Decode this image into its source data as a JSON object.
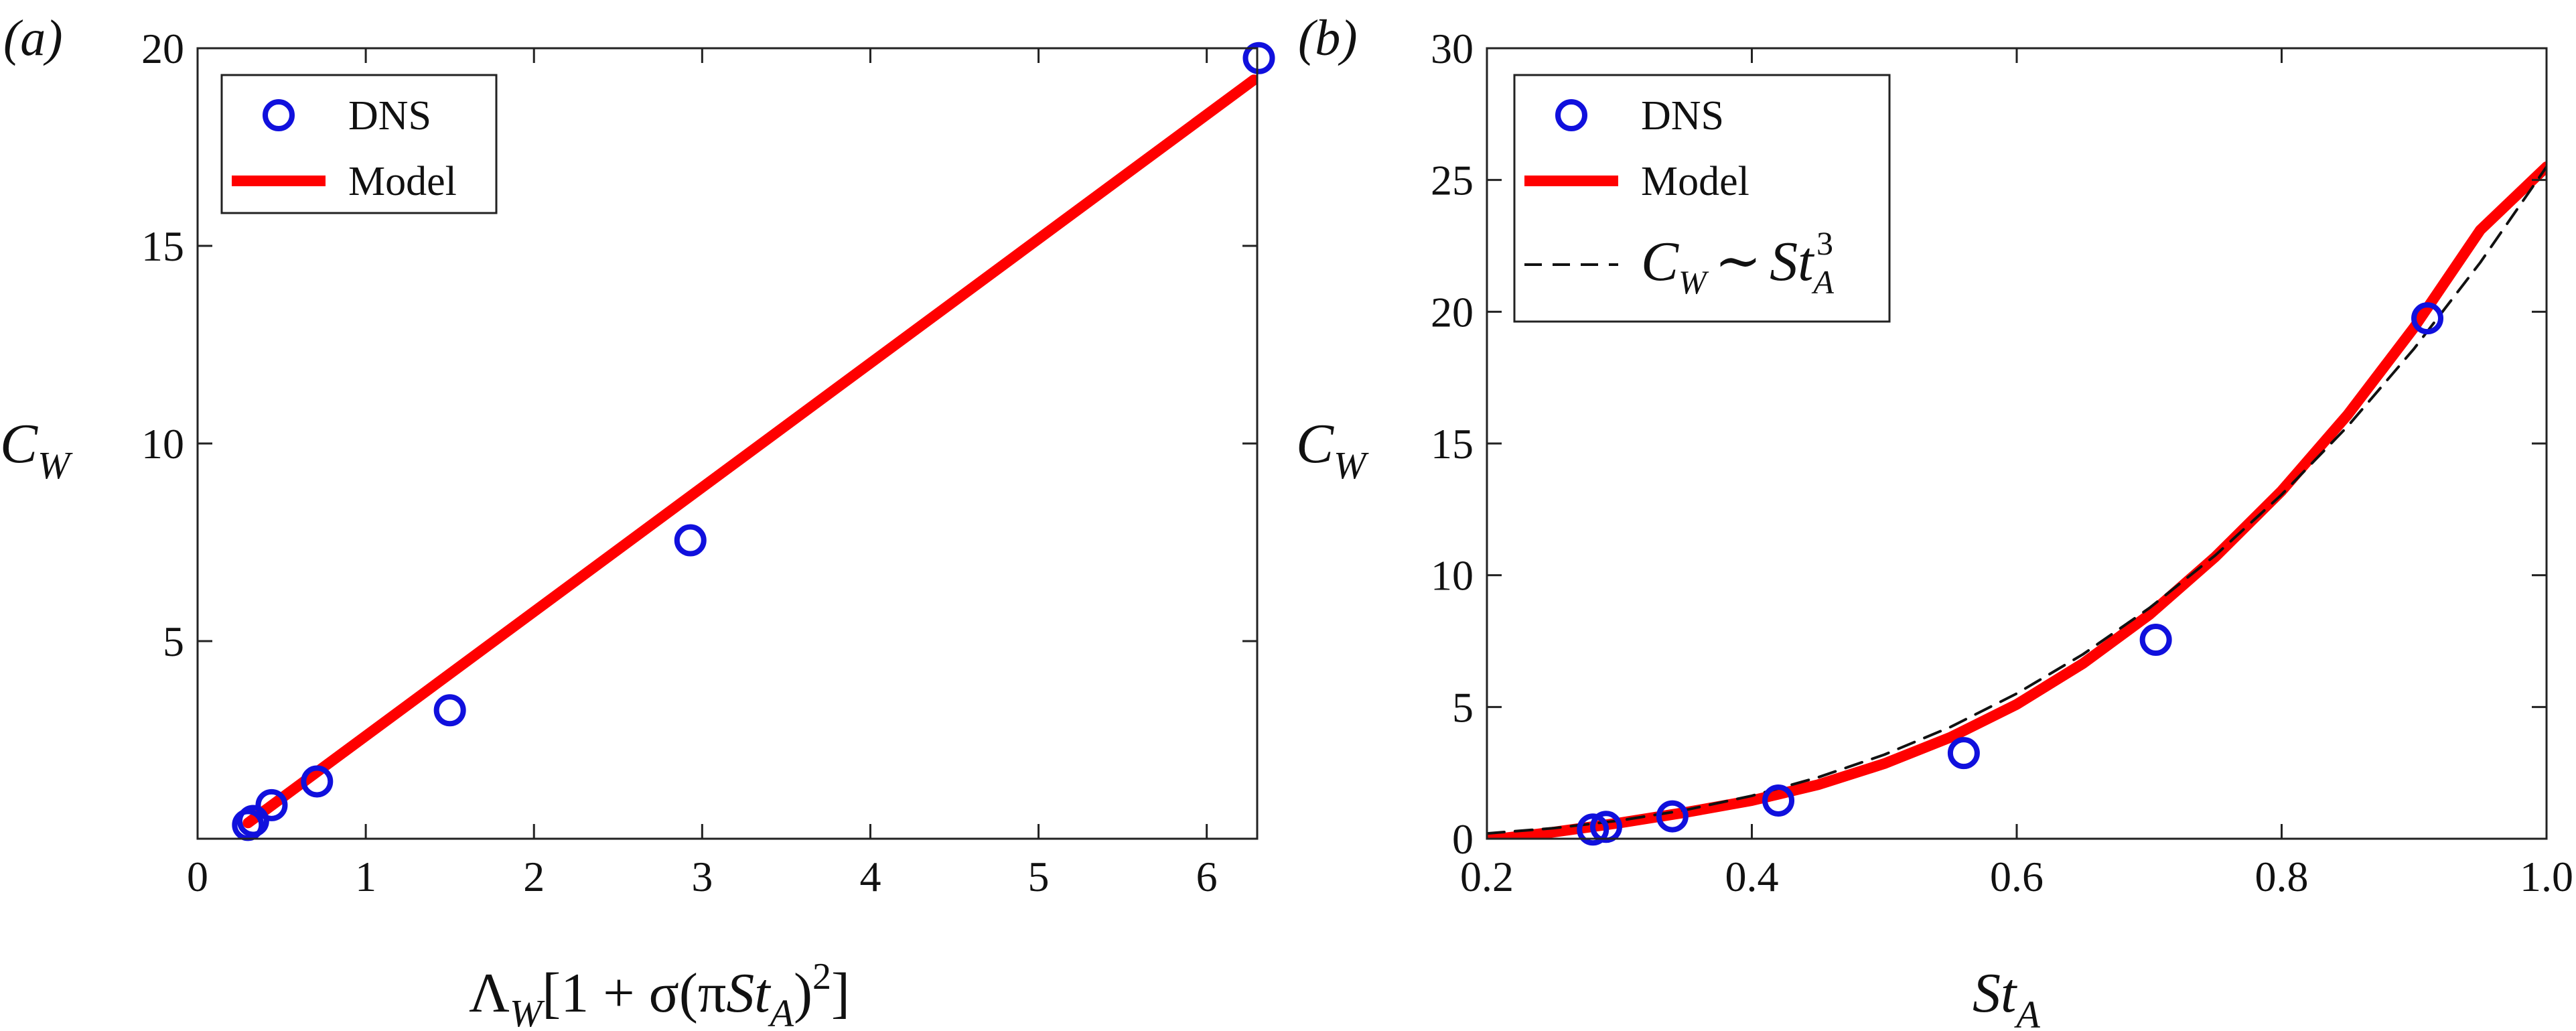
{
  "chart_data": [
    {
      "type": "scatter",
      "panel_label": "(a)",
      "ylabel": "C_W",
      "xlabel": "Λ_W[1 + σ(πSt_A)^2]",
      "xlim": [
        0,
        6.3
      ],
      "ylim": [
        0,
        20
      ],
      "xticks": [
        0,
        1,
        2,
        3,
        4,
        5,
        6
      ],
      "yticks": [
        5,
        10,
        15,
        20
      ],
      "legend": {
        "position": "top-left",
        "entries": [
          "DNS",
          "Model"
        ]
      },
      "series": [
        {
          "name": "DNS",
          "kind": "markers",
          "color": "#1010dd",
          "x": [
            0.3,
            0.33,
            0.44,
            0.71,
            1.5,
            2.93,
            6.31
          ],
          "y": [
            0.35,
            0.45,
            0.85,
            1.45,
            3.25,
            7.55,
            19.75
          ]
        },
        {
          "name": "Model",
          "kind": "line",
          "color": "#ff0000",
          "x": [
            0.3,
            6.28
          ],
          "y": [
            0.4,
            19.2
          ]
        }
      ]
    },
    {
      "type": "line",
      "panel_label": "(b)",
      "ylabel": "C_W",
      "xlabel": "St_A",
      "xlim": [
        0.2,
        1.0
      ],
      "ylim": [
        0,
        30
      ],
      "xticks": [
        "0.2",
        "0.4",
        "0.6",
        "0.8",
        "1.0"
      ],
      "yticks": [
        0,
        5,
        10,
        15,
        20,
        25,
        30
      ],
      "legend": {
        "position": "top-left",
        "entries": [
          "DNS",
          "Model",
          "C_W ~ St_A^3"
        ]
      },
      "series": [
        {
          "name": "DNS",
          "kind": "markers",
          "color": "#1010dd",
          "x": [
            0.28,
            0.29,
            0.34,
            0.42,
            0.56,
            0.705,
            0.91
          ],
          "y": [
            0.35,
            0.45,
            0.85,
            1.45,
            3.25,
            7.55,
            19.75
          ]
        },
        {
          "name": "Model",
          "kind": "line",
          "color": "#ff0000",
          "x": [
            0.2,
            0.25,
            0.3,
            0.35,
            0.4,
            0.45,
            0.5,
            0.55,
            0.6,
            0.65,
            0.7,
            0.75,
            0.8,
            0.85,
            0.9,
            0.95,
            1.0
          ],
          "y": [
            -0.05,
            0.25,
            0.6,
            1.0,
            1.45,
            2.05,
            2.85,
            3.85,
            5.1,
            6.65,
            8.5,
            10.7,
            13.2,
            16.1,
            19.4,
            23.1,
            25.5
          ]
        },
        {
          "name": "C_W ~ St_A^3",
          "kind": "dashed",
          "color": "#111111",
          "x": [
            0.2,
            0.25,
            0.3,
            0.35,
            0.4,
            0.45,
            0.5,
            0.55,
            0.6,
            0.65,
            0.7,
            0.75,
            0.8,
            0.85,
            0.9,
            0.95,
            1.0
          ],
          "y": [
            0.2,
            0.4,
            0.69,
            1.09,
            1.63,
            2.33,
            3.19,
            4.24,
            5.51,
            7.0,
            8.75,
            10.76,
            13.06,
            15.66,
            18.6,
            21.87,
            25.5
          ]
        }
      ]
    }
  ],
  "text": {
    "a_ylabel_main": "C",
    "a_ylabel_sub": "W",
    "a_xlabel_lambda": "Λ",
    "a_xlabel_lambda_sub": "W",
    "a_xlabel_mid": "[1 + σ(π",
    "a_xlabel_st": "St",
    "a_xlabel_st_sub": "A",
    "a_xlabel_close": ")",
    "a_xlabel_sup": "2",
    "a_xlabel_end": "]",
    "b_ylabel_main": "C",
    "b_ylabel_sub": "W",
    "b_xlabel_main": "St",
    "b_xlabel_sub": "A",
    "legend_dns": "DNS",
    "legend_model": "Model",
    "legend_scaling_c": "C",
    "legend_scaling_w": "W",
    "legend_scaling_sim": "∼",
    "legend_scaling_st": "St",
    "legend_scaling_a": "A",
    "legend_scaling_3": "3"
  }
}
